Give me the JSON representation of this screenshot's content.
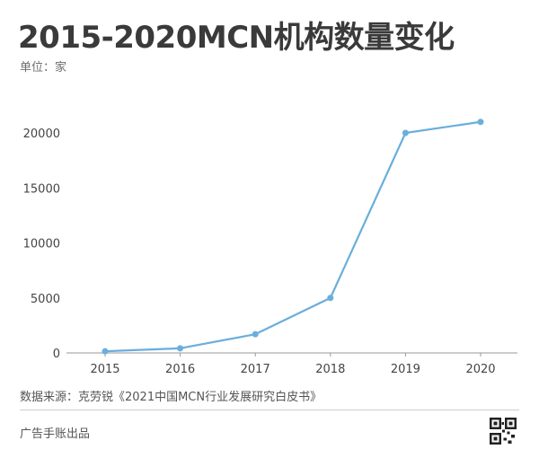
{
  "header": {
    "title": "2015-2020MCN机构数量变化",
    "unit": "单位：家"
  },
  "footer": {
    "source": "数据来源：克劳锐《2021中国MCN行业发展研究白皮书》",
    "brand": "广告手账出品",
    "qr_icon": "qr-code-icon"
  },
  "chart_data": {
    "type": "line",
    "title": "2015-2020MCN机构数量变化",
    "xlabel": "",
    "ylabel": "单位：家",
    "categories": [
      "2015",
      "2016",
      "2017",
      "2018",
      "2019",
      "2020"
    ],
    "values": [
      150,
      420,
      1700,
      5000,
      20000,
      21000
    ],
    "ylim": [
      0,
      20000
    ],
    "yticks": [
      0,
      5000,
      10000,
      15000,
      20000
    ],
    "grid": false,
    "color": "#6aaedc"
  }
}
